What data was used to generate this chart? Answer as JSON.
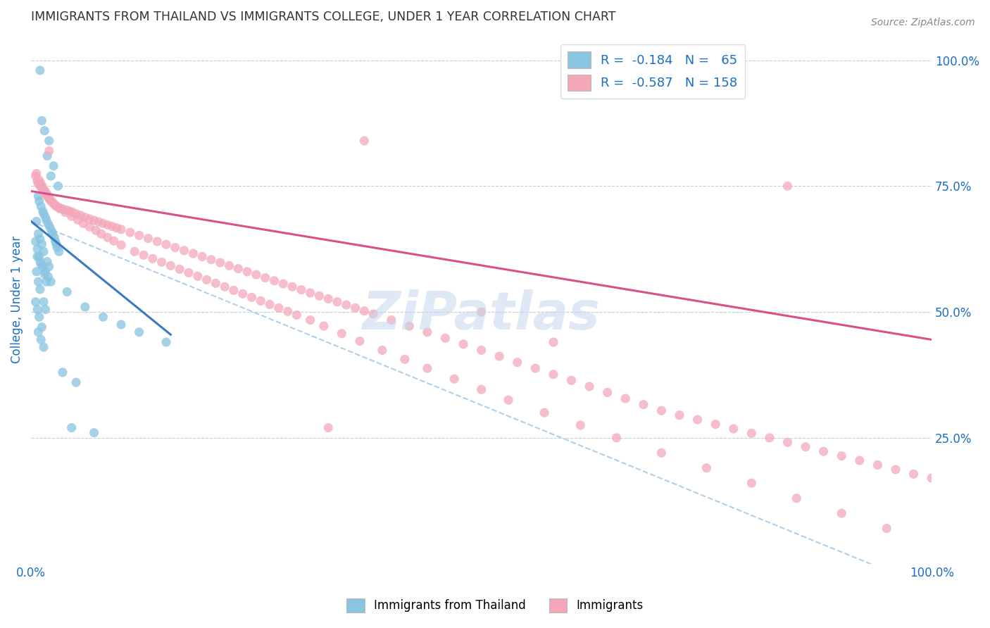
{
  "title": "IMMIGRANTS FROM THAILAND VS IMMIGRANTS COLLEGE, UNDER 1 YEAR CORRELATION CHART",
  "source": "Source: ZipAtlas.com",
  "ylabel": "College, Under 1 year",
  "watermark": "ZiPatlas",
  "blue_color": "#89c4e1",
  "pink_color": "#f4a7b9",
  "blue_line_color": "#3a7abf",
  "pink_line_color": "#d94f8a",
  "dashed_line_color": "#b0cfe8",
  "axis_label_color": "#1a6fc4",
  "blue_scatter_x": [
    0.01,
    0.012,
    0.015,
    0.02,
    0.018,
    0.025,
    0.022,
    0.03,
    0.008,
    0.009,
    0.011,
    0.013,
    0.014,
    0.016,
    0.017,
    0.019,
    0.021,
    0.023,
    0.024,
    0.026,
    0.027,
    0.028,
    0.029,
    0.031,
    0.007,
    0.01,
    0.013,
    0.016,
    0.019,
    0.022,
    0.006,
    0.008,
    0.01,
    0.012,
    0.014,
    0.018,
    0.02,
    0.005,
    0.007,
    0.009,
    0.011,
    0.015,
    0.017,
    0.006,
    0.008,
    0.01,
    0.014,
    0.016,
    0.005,
    0.007,
    0.009,
    0.012,
    0.008,
    0.011,
    0.014,
    0.04,
    0.06,
    0.08,
    0.1,
    0.12,
    0.15,
    0.035,
    0.05,
    0.045,
    0.07
  ],
  "blue_scatter_y": [
    0.98,
    0.88,
    0.86,
    0.84,
    0.81,
    0.79,
    0.77,
    0.75,
    0.73,
    0.72,
    0.71,
    0.7,
    0.695,
    0.688,
    0.682,
    0.675,
    0.668,
    0.66,
    0.655,
    0.648,
    0.64,
    0.635,
    0.628,
    0.62,
    0.61,
    0.6,
    0.59,
    0.58,
    0.57,
    0.56,
    0.68,
    0.655,
    0.645,
    0.635,
    0.62,
    0.6,
    0.59,
    0.64,
    0.625,
    0.61,
    0.595,
    0.575,
    0.56,
    0.58,
    0.56,
    0.545,
    0.52,
    0.505,
    0.52,
    0.505,
    0.49,
    0.47,
    0.46,
    0.445,
    0.43,
    0.54,
    0.51,
    0.49,
    0.475,
    0.46,
    0.44,
    0.38,
    0.36,
    0.27,
    0.26
  ],
  "pink_scatter_x": [
    0.005,
    0.007,
    0.008,
    0.01,
    0.012,
    0.014,
    0.016,
    0.018,
    0.02,
    0.022,
    0.025,
    0.028,
    0.03,
    0.033,
    0.036,
    0.04,
    0.043,
    0.046,
    0.05,
    0.055,
    0.06,
    0.065,
    0.07,
    0.075,
    0.08,
    0.085,
    0.09,
    0.095,
    0.1,
    0.11,
    0.12,
    0.13,
    0.14,
    0.15,
    0.16,
    0.17,
    0.18,
    0.19,
    0.2,
    0.21,
    0.22,
    0.23,
    0.24,
    0.25,
    0.26,
    0.27,
    0.28,
    0.29,
    0.3,
    0.31,
    0.32,
    0.33,
    0.34,
    0.35,
    0.36,
    0.37,
    0.38,
    0.4,
    0.42,
    0.44,
    0.46,
    0.48,
    0.5,
    0.52,
    0.54,
    0.56,
    0.58,
    0.6,
    0.62,
    0.64,
    0.66,
    0.68,
    0.7,
    0.72,
    0.74,
    0.76,
    0.78,
    0.8,
    0.82,
    0.84,
    0.86,
    0.88,
    0.9,
    0.92,
    0.94,
    0.96,
    0.98,
    1.0,
    0.006,
    0.009,
    0.011,
    0.013,
    0.015,
    0.017,
    0.019,
    0.021,
    0.024,
    0.027,
    0.032,
    0.038,
    0.045,
    0.052,
    0.058,
    0.065,
    0.072,
    0.078,
    0.085,
    0.092,
    0.1,
    0.115,
    0.125,
    0.135,
    0.145,
    0.155,
    0.165,
    0.175,
    0.185,
    0.195,
    0.205,
    0.215,
    0.225,
    0.235,
    0.245,
    0.255,
    0.265,
    0.275,
    0.285,
    0.295,
    0.31,
    0.325,
    0.345,
    0.365,
    0.39,
    0.415,
    0.44,
    0.47,
    0.5,
    0.53,
    0.57,
    0.61,
    0.65,
    0.7,
    0.75,
    0.8,
    0.85,
    0.9,
    0.95,
    0.37,
    0.5,
    0.84,
    0.58,
    0.33,
    0.02
  ],
  "pink_scatter_y": [
    0.77,
    0.76,
    0.755,
    0.75,
    0.745,
    0.74,
    0.735,
    0.73,
    0.725,
    0.72,
    0.715,
    0.71,
    0.708,
    0.706,
    0.704,
    0.702,
    0.7,
    0.698,
    0.695,
    0.692,
    0.688,
    0.685,
    0.682,
    0.679,
    0.676,
    0.673,
    0.67,
    0.667,
    0.664,
    0.658,
    0.652,
    0.646,
    0.64,
    0.634,
    0.628,
    0.622,
    0.616,
    0.61,
    0.604,
    0.598,
    0.592,
    0.586,
    0.58,
    0.574,
    0.568,
    0.562,
    0.556,
    0.55,
    0.544,
    0.538,
    0.532,
    0.526,
    0.52,
    0.514,
    0.508,
    0.502,
    0.496,
    0.484,
    0.472,
    0.46,
    0.448,
    0.436,
    0.424,
    0.412,
    0.4,
    0.388,
    0.376,
    0.364,
    0.352,
    0.34,
    0.328,
    0.316,
    0.304,
    0.295,
    0.286,
    0.277,
    0.268,
    0.259,
    0.25,
    0.241,
    0.232,
    0.223,
    0.214,
    0.205,
    0.196,
    0.187,
    0.178,
    0.17,
    0.775,
    0.762,
    0.755,
    0.748,
    0.742,
    0.736,
    0.73,
    0.724,
    0.718,
    0.712,
    0.705,
    0.698,
    0.69,
    0.683,
    0.676,
    0.669,
    0.662,
    0.655,
    0.648,
    0.641,
    0.633,
    0.62,
    0.613,
    0.606,
    0.599,
    0.592,
    0.585,
    0.578,
    0.571,
    0.564,
    0.557,
    0.55,
    0.543,
    0.536,
    0.529,
    0.522,
    0.515,
    0.508,
    0.501,
    0.494,
    0.484,
    0.472,
    0.457,
    0.442,
    0.424,
    0.406,
    0.388,
    0.367,
    0.346,
    0.325,
    0.3,
    0.275,
    0.25,
    0.22,
    0.19,
    0.16,
    0.13,
    0.1,
    0.07,
    0.84,
    0.5,
    0.75,
    0.44,
    0.27,
    0.82
  ],
  "blue_line_x": [
    0.0,
    0.155
  ],
  "blue_line_y": [
    0.68,
    0.455
  ],
  "pink_line_x": [
    0.0,
    1.0
  ],
  "pink_line_y": [
    0.74,
    0.445
  ],
  "dashed_line_x": [
    0.0,
    1.0
  ],
  "dashed_line_y": [
    0.68,
    -0.05
  ],
  "xlim": [
    0.0,
    1.0
  ],
  "ylim": [
    0.0,
    1.05
  ],
  "xticks": [
    0.0,
    0.25,
    0.5,
    0.75,
    1.0
  ],
  "xticklabels": [
    "0.0%",
    "",
    "",
    "",
    "100.0%"
  ],
  "yticks_right": [
    1.0,
    0.75,
    0.5,
    0.25
  ],
  "yticklabels_right": [
    "100.0%",
    "75.0%",
    "50.0%",
    "25.0%"
  ],
  "grid_lines": [
    1.0,
    0.75,
    0.5,
    0.25
  ]
}
